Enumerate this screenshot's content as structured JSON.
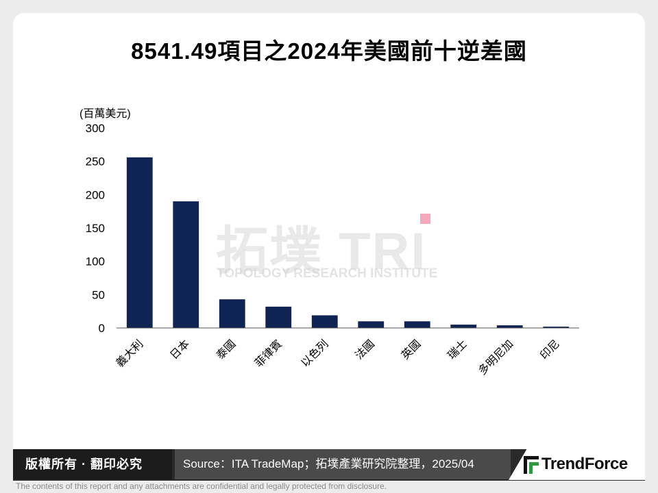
{
  "chart_data": {
    "type": "bar",
    "title": "8541.49項目之2024年美國前十逆差國",
    "ylabel": "(百萬美元)",
    "xlabel": "",
    "ylim": [
      0,
      300
    ],
    "yticks": [
      0,
      50,
      100,
      150,
      200,
      250,
      300
    ],
    "categories": [
      "義大利",
      "日本",
      "泰國",
      "菲律賓",
      "以色列",
      "法國",
      "英國",
      "瑞士",
      "多明尼加",
      "印尼"
    ],
    "values": [
      256,
      190,
      43,
      32,
      19,
      10,
      10,
      5,
      4,
      2
    ],
    "bar_color": "#0f2453",
    "grid": false,
    "legend": "none"
  },
  "watermark": {
    "logo_text": "拓墣 TRI",
    "subtitle": "TOPOLOGY RESEARCH INSTITUTE"
  },
  "footer": {
    "copyright": "版權所有 · 翻印必究",
    "source": "Source：ITA TradeMap；拓墣產業研究院整理，2025/04",
    "brand": "TrendForce",
    "confidential": "The contents of this report and any attachments are confidential and legally protected from disclosure."
  },
  "colors": {
    "bar": "#0f2453",
    "logo_green": "#2e9a3e"
  }
}
